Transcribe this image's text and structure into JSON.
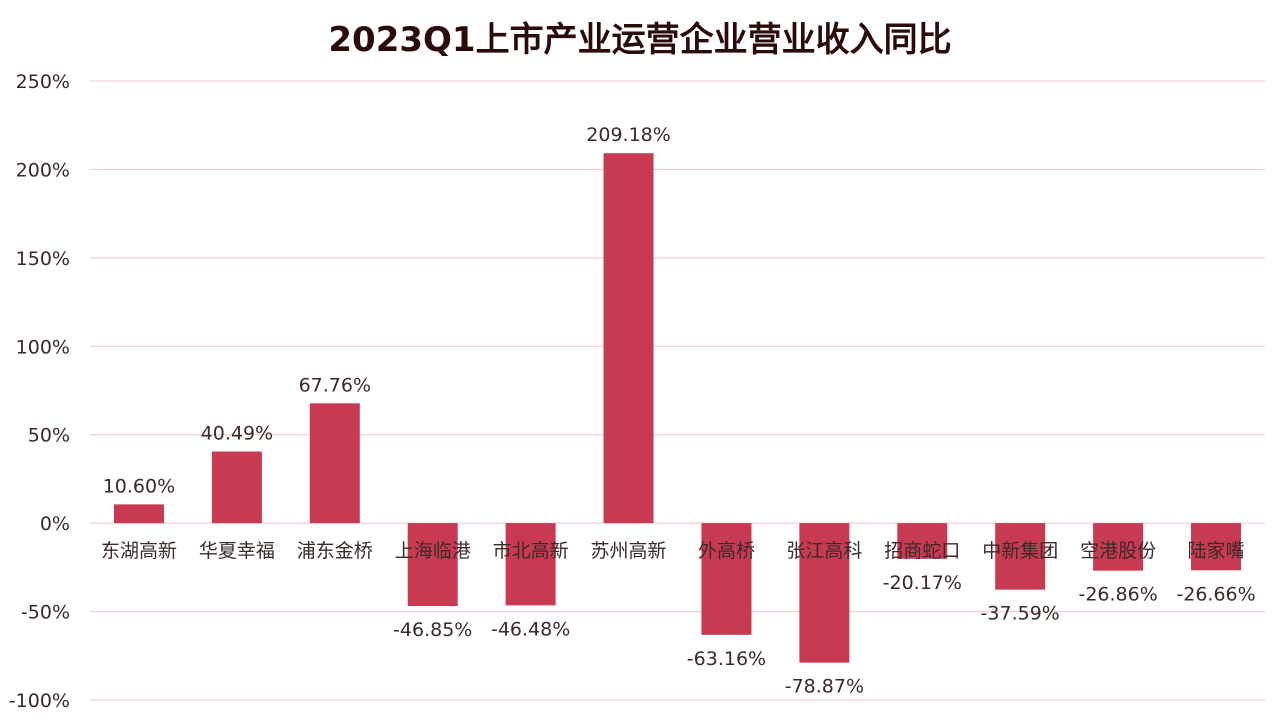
{
  "chart_data": {
    "type": "bar",
    "title": "2023Q1上市产业运营企业营业收入同比",
    "categories": [
      "东湖高新",
      "华夏幸福",
      "浦东金桥",
      "上海临港",
      "市北高新",
      "苏州高新",
      "外高桥",
      "张江高科",
      "招商蛇口",
      "中新集团",
      "空港股份",
      "陆家嘴"
    ],
    "values": [
      10.6,
      40.49,
      67.76,
      -46.85,
      -46.48,
      209.18,
      -63.16,
      -78.87,
      -20.17,
      -37.59,
      -26.86,
      -26.66
    ],
    "data_labels": [
      "10.60%",
      "40.49%",
      "67.76%",
      "-46.85%",
      "-46.48%",
      "209.18%",
      "-63.16%",
      "-78.87%",
      "-20.17%",
      "-37.59%",
      "-26.86%",
      "-26.66%"
    ],
    "ylim": [
      -100,
      250
    ],
    "yticks": [
      250,
      200,
      150,
      100,
      50,
      0,
      -50,
      -100
    ],
    "ytick_labels": [
      "250%",
      "200%",
      "150%",
      "100%",
      "50%",
      "0%",
      "-50%",
      "-100%"
    ],
    "bar_color": "#c73a52",
    "grid": true,
    "legend": "none"
  }
}
